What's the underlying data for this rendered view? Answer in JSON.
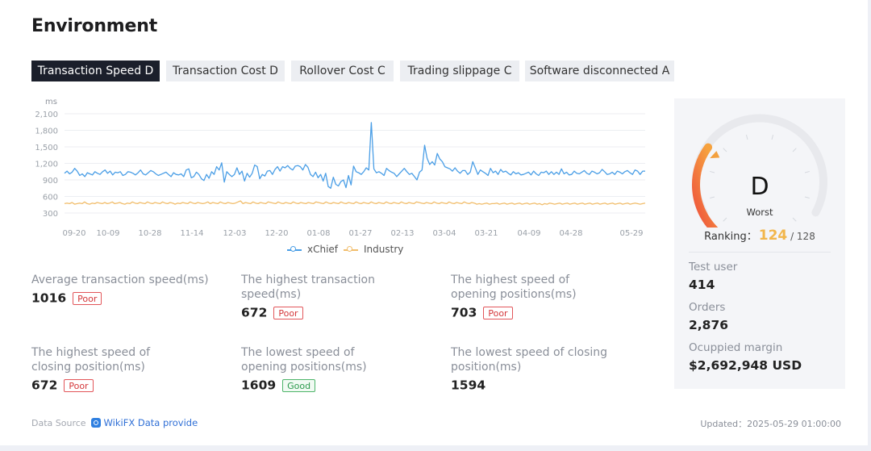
{
  "page": {
    "title": "Environment"
  },
  "tabs": [
    {
      "label": "Transaction Speed D",
      "active": true
    },
    {
      "label": "Transaction Cost D",
      "active": false
    },
    {
      "label": "Rollover Cost C",
      "active": false
    },
    {
      "label": "Trading slippage C",
      "active": false
    },
    {
      "label": "Software disconnected A",
      "active": false
    }
  ],
  "colors": {
    "xchief": "#4a9ee6",
    "industry": "#f1bd6b",
    "poor": "#d4373a",
    "good": "#2c9a4c",
    "ranking": "#f2b64b"
  },
  "chart_data": {
    "type": "line",
    "ylabel": "ms",
    "y_ticks": [
      300,
      600,
      900,
      1200,
      1500,
      1800,
      2100
    ],
    "y_tick_labels": [
      "300",
      "600",
      "900",
      "1,200",
      "1,500",
      "1,800",
      "2,100"
    ],
    "ylim": [
      300,
      2100
    ],
    "x_tick_labels": [
      "09-20",
      "10-09",
      "10-28",
      "11-14",
      "12-03",
      "12-20",
      "01-08",
      "01-27",
      "02-13",
      "03-04",
      "03-21",
      "04-09",
      "04-28",
      "05-29"
    ],
    "grid": true,
    "legend_position": "bottom-center",
    "series": [
      {
        "name": "xChief",
        "values": [
          1020,
          1060,
          1010,
          1040,
          1110,
          1060,
          980,
          1010,
          960,
          1030,
          1010,
          990,
          1050,
          1020,
          1000,
          1050,
          1080,
          1020,
          1060,
          990,
          1040,
          1030,
          1050,
          980,
          1000,
          1050,
          1040,
          1020,
          990,
          1030,
          1080,
          1010,
          990,
          1030,
          1070,
          1050,
          1010,
          980,
          1000,
          1020,
          1040,
          1000,
          960,
          1030,
          1000,
          990,
          1010,
          960,
          1080,
          1100,
          940,
          960,
          1040,
          1000,
          920,
          890,
          1000,
          930,
          1050,
          1000,
          1140,
          1080,
          1210,
          860,
          1050,
          1000,
          960,
          1000,
          1120,
          1000,
          1060,
          880,
          1020,
          950,
          1020,
          1170,
          1140,
          920,
          1000,
          970,
          1060,
          1070,
          1000,
          1090,
          1140,
          1060,
          1140,
          1120,
          1160,
          1110,
          1080,
          1150,
          1160,
          1140,
          1080,
          1180,
          1130,
          1000,
          960,
          1040,
          940,
          1000,
          880,
          1020,
          780,
          750,
          950,
          820,
          790,
          870,
          900,
          760,
          980,
          810,
          1150,
          1050,
          1030,
          1000,
          1050,
          1120,
          1080,
          1940,
          1100,
          1030,
          1050,
          1020,
          980,
          1110,
          1070,
          1040,
          1020,
          960,
          1010,
          1060,
          1110,
          1050,
          1000,
          1020,
          960,
          900,
          1040,
          1080,
          1530,
          1290,
          1180,
          1230,
          1170,
          1380,
          1280,
          1230,
          1140,
          1120,
          1100,
          1060,
          1120,
          1060,
          1020,
          1070,
          1070,
          1000,
          1040,
          1230,
          1120,
          1000,
          1080,
          1050,
          1020,
          980,
          1110,
          1030,
          1060,
          1000,
          1090,
          1040,
          1060,
          1020,
          990,
          1050,
          1010,
          1030,
          990,
          1000,
          1020,
          1040,
          990,
          1060,
          1010,
          980,
          1040,
          1030,
          1060,
          1000,
          1050,
          1000,
          1040,
          1000,
          1100,
          1010,
          1040,
          990,
          1000,
          1060,
          1020,
          1010,
          1040,
          1070,
          1020,
          1000,
          1060,
          1040,
          1010,
          1030,
          1090,
          1050,
          1000,
          1010,
          1040,
          1000,
          1060,
          1040,
          1010,
          1050,
          1070,
          1030,
          1000,
          1080,
          1060,
          1000,
          1060,
          1060
        ],
        "color": "#4a9ee6"
      },
      {
        "name": "Industry",
        "values": [
          470,
          480,
          470,
          490,
          460,
          470,
          480,
          470,
          500,
          470,
          460,
          480,
          470,
          490,
          480,
          470,
          490,
          470,
          480,
          500,
          470,
          480,
          490,
          470,
          460,
          480,
          470,
          500,
          480,
          470,
          490,
          480,
          470,
          500,
          480,
          470,
          490,
          480,
          470,
          500,
          480,
          470,
          490,
          480,
          460,
          480,
          470,
          490,
          480,
          470,
          500,
          480,
          470,
          490,
          480,
          470,
          480,
          500,
          470,
          490,
          480,
          470,
          500,
          480,
          470,
          490,
          480,
          470,
          480,
          500,
          520,
          470,
          490,
          480,
          470,
          500,
          480,
          470,
          490,
          480,
          470,
          500,
          490,
          480,
          470,
          500,
          480,
          470,
          490,
          480,
          470,
          500,
          480,
          470,
          490,
          480,
          470,
          490,
          480,
          470,
          500,
          490,
          480,
          470,
          500,
          480,
          470,
          490,
          480,
          470,
          500,
          480,
          470,
          490,
          480,
          470,
          500,
          480,
          470,
          490,
          480,
          470,
          500,
          480,
          470,
          490,
          480,
          470,
          500,
          480,
          470,
          490,
          480,
          470,
          500,
          480,
          470,
          490,
          480,
          470,
          500,
          490,
          480,
          470,
          490,
          480,
          470,
          500,
          480,
          470,
          490,
          480,
          470,
          500,
          480,
          470,
          490,
          480,
          470,
          500,
          480,
          470,
          490,
          480,
          460,
          470,
          460,
          470,
          480,
          460,
          470,
          470,
          480,
          460,
          470,
          480,
          460,
          470,
          480,
          460,
          470,
          480,
          460,
          470,
          480,
          460,
          470,
          480,
          460,
          470,
          450,
          470,
          460,
          480,
          470,
          460,
          470,
          480,
          460,
          470,
          480,
          460,
          470,
          480,
          460,
          470,
          480,
          460,
          470,
          480,
          460,
          470,
          480,
          460,
          470,
          480,
          460,
          470,
          480,
          460,
          470,
          480,
          460,
          470,
          480,
          460,
          470,
          480,
          470,
          460,
          470,
          480
        ],
        "color": "#f1bd6b"
      }
    ]
  },
  "stats": [
    {
      "label": "Average transaction speed(ms)",
      "value": "1016",
      "badge": "Poor",
      "badge_type": "poor"
    },
    {
      "label": "The highest transaction speed(ms)",
      "value": "672",
      "badge": "Poor",
      "badge_type": "poor"
    },
    {
      "label": "The highest speed of opening positions(ms)",
      "value": "703",
      "badge": "Poor",
      "badge_type": "poor"
    },
    {
      "label": "The highest speed of closing position(ms)",
      "value": "672",
      "badge": "Poor",
      "badge_type": "poor"
    },
    {
      "label": "The lowest speed of opening positions(ms)",
      "value": "1609",
      "badge": "Good",
      "badge_type": "good"
    },
    {
      "label": "The lowest speed of closing position(ms)",
      "value": "1594",
      "badge": "",
      "badge_type": ""
    }
  ],
  "footer": {
    "source_label": "Data Source",
    "source_icon": "wikifx-icon",
    "source_link": "WikiFX Data provide",
    "updated": "Updated：2025-05-29 01:00:00"
  },
  "panel": {
    "grade": "D",
    "grade_label": "Worst",
    "grade_level": 0.1,
    "ranking_label": "Ranking：",
    "ranking_value": "124",
    "ranking_total": " / 128",
    "items": [
      {
        "label": "Test user",
        "value": "414"
      },
      {
        "label": "Orders",
        "value": "2,876"
      },
      {
        "label": "Ocuppied margin",
        "value": "$2,692,948 USD"
      }
    ]
  }
}
